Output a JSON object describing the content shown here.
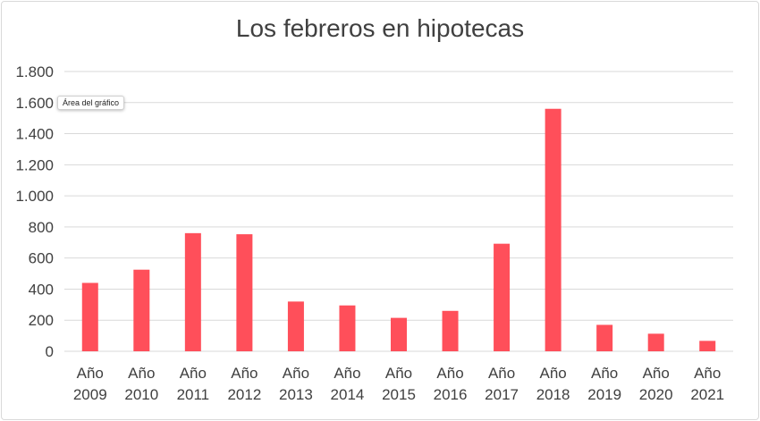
{
  "tooltip": "Área del gráfico",
  "chart_data": {
    "type": "bar",
    "title": "Los febreros en hipotecas",
    "xlabel": "",
    "ylabel": "",
    "categories": [
      [
        "Año",
        "2009"
      ],
      [
        "Año",
        "2010"
      ],
      [
        "Año",
        "2011"
      ],
      [
        "Año",
        "2012"
      ],
      [
        "Año",
        "2013"
      ],
      [
        "Año",
        "2014"
      ],
      [
        "Año",
        "2015"
      ],
      [
        "Año",
        "2016"
      ],
      [
        "Año",
        "2017"
      ],
      [
        "Año",
        "2018"
      ],
      [
        "Año",
        "2019"
      ],
      [
        "Año",
        "2020"
      ],
      [
        "Año",
        "2021"
      ]
    ],
    "values": [
      440,
      525,
      760,
      753,
      320,
      295,
      215,
      260,
      692,
      1560,
      170,
      113,
      67
    ],
    "ylim": [
      0,
      1800
    ],
    "yticks": [
      0,
      200,
      400,
      600,
      800,
      1000,
      1200,
      1400,
      1600,
      1800
    ],
    "ytick_labels": [
      "0",
      "200",
      "400",
      "600",
      "800",
      "1.000",
      "1.200",
      "1.400",
      "1.600",
      "1.800"
    ],
    "grid": true,
    "legend": false,
    "bar_color": "#ff4f5a",
    "grid_color": "#d9d9d9"
  }
}
